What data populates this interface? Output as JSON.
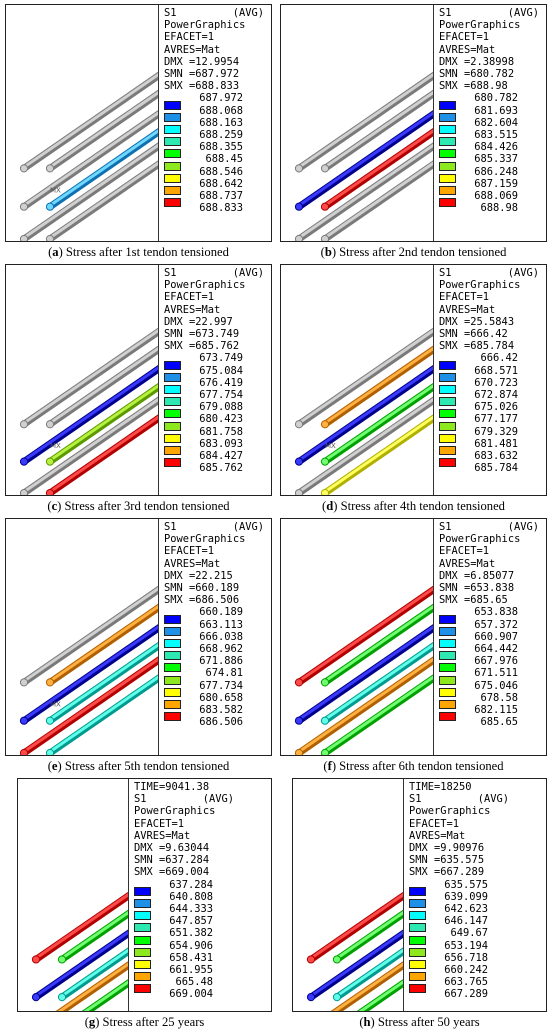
{
  "captions": {
    "a": {
      "letter": "a",
      "text": " Stress after 1st tendon tensioned"
    },
    "b": {
      "letter": "b",
      "text": " Stress after 2nd tendon tensioned"
    },
    "c": {
      "letter": "c",
      "text": " Stress after 3rd tendon tensioned"
    },
    "d": {
      "letter": "d",
      "text": " Stress after 4th tendon tensioned"
    },
    "e": {
      "letter": "e",
      "text": " Stress after 5th tendon tensioned"
    },
    "f": {
      "letter": "f",
      "text": " Stress after 6th tendon tensioned"
    },
    "g": {
      "letter": "g",
      "text": " Stress after 25 years"
    },
    "h": {
      "letter": "h",
      "text": " Stress after 50 years"
    }
  },
  "legend_colors": [
    "#0000ff",
    "#1e90e8",
    "#00ffff",
    "#2de8b0",
    "#00ff00",
    "#8ee81e",
    "#ffff00",
    "#ffa500",
    "#ff0000"
  ],
  "panels": [
    {
      "id": "a",
      "time": "",
      "s1": "S1",
      "avg": "(AVG)",
      "pg": "PowerGraphics",
      "efacet": "EFACET=1",
      "avres": "AVRES=Mat",
      "dmx": "DMX =12.9954",
      "smn": "SMN =687.972",
      "smx": "SMX =688.833",
      "levels": [
        "687.972",
        "688.068",
        "688.163",
        "688.259",
        "688.355",
        "688.45",
        "688.546",
        "688.642",
        "688.737",
        "688.833"
      ],
      "mx": "MX",
      "rods": [
        "gray",
        "gray",
        "cyan-blue",
        "gray",
        "gray",
        "gray"
      ]
    },
    {
      "id": "b",
      "time": "",
      "s1": "S1",
      "avg": "(AVG)",
      "pg": "PowerGraphics",
      "efacet": "EFACET=1",
      "avres": "AVRES=Mat",
      "dmx": "DMX =2.38998",
      "smn": "SMN =680.782",
      "smx": "SMX =688.98",
      "levels": [
        "680.782",
        "681.693",
        "682.604",
        "683.515",
        "684.426",
        "685.337",
        "686.248",
        "687.159",
        "688.069",
        "688.98"
      ],
      "mx": "",
      "rods": [
        "gray",
        "gray",
        "red",
        "blue",
        "gray",
        "gray"
      ]
    },
    {
      "id": "c",
      "time": "",
      "s1": "S1",
      "avg": "(AVG)",
      "pg": "PowerGraphics",
      "efacet": "EFACET=1",
      "avres": "AVRES=Mat",
      "dmx": "DMX =22.997",
      "smn": "SMN =673.749",
      "smx": "SMX =685.762",
      "levels": [
        "673.749",
        "675.084",
        "676.419",
        "677.754",
        "679.088",
        "680.423",
        "681.758",
        "683.093",
        "684.427",
        "685.762"
      ],
      "mx": "MX",
      "rods": [
        "gray",
        "gray",
        "yellowgreen",
        "blue",
        "gray",
        "red"
      ]
    },
    {
      "id": "d",
      "time": "",
      "s1": "S1",
      "avg": "(AVG)",
      "pg": "PowerGraphics",
      "efacet": "EFACET=1",
      "avres": "AVRES=Mat",
      "dmx": "DMX =25.5843",
      "smn": "SMN =666.42",
      "smx": "SMX =685.784",
      "levels": [
        "666.42",
        "668.571",
        "670.723",
        "672.874",
        "675.026",
        "677.177",
        "679.329",
        "681.481",
        "683.632",
        "685.784"
      ],
      "mx": "MX",
      "rods": [
        "gray",
        "orange",
        "green",
        "blue",
        "gray",
        "yellow"
      ]
    },
    {
      "id": "e",
      "time": "",
      "s1": "S1",
      "avg": "(AVG)",
      "pg": "PowerGraphics",
      "efacet": "EFACET=1",
      "avres": "AVRES=Mat",
      "dmx": "DMX =22.215",
      "smn": "SMN =660.189",
      "smx": "SMX =686.506",
      "levels": [
        "660.189",
        "663.113",
        "666.038",
        "668.962",
        "671.886",
        "674.81",
        "677.734",
        "680.658",
        "683.582",
        "686.506"
      ],
      "mx": "MX",
      "rods": [
        "gray",
        "orange",
        "teal",
        "blue",
        "red",
        "teal"
      ]
    },
    {
      "id": "f",
      "time": "",
      "s1": "S1",
      "avg": "(AVG)",
      "pg": "PowerGraphics",
      "efacet": "EFACET=1",
      "avres": "AVRES=Mat",
      "dmx": "DMX =6.85077",
      "smn": "SMN =653.838",
      "smx": "SMX =685.65",
      "levels": [
        "653.838",
        "657.372",
        "660.907",
        "664.442",
        "667.976",
        "671.511",
        "675.046",
        "678.58",
        "682.115",
        "685.65"
      ],
      "mx": "",
      "rods": [
        "red",
        "green",
        "teal",
        "blue",
        "orange",
        "green"
      ]
    },
    {
      "id": "g",
      "time": "TIME=9041.38",
      "s1": "S1",
      "avg": "(AVG)",
      "pg": "PowerGraphics",
      "efacet": "EFACET=1",
      "avres": "AVRES=Mat",
      "dmx": "DMX =9.63044",
      "smn": "SMN =637.284",
      "smx": "SMX =669.004",
      "levels": [
        "637.284",
        "640.808",
        "644.333",
        "647.857",
        "651.382",
        "654.906",
        "658.431",
        "661.955",
        "665.48",
        "669.004"
      ],
      "mx": "",
      "rods": [
        "red",
        "green",
        "teal",
        "blue",
        "orange",
        "green"
      ]
    },
    {
      "id": "h",
      "time": "TIME=18250",
      "s1": "S1",
      "avg": "(AVG)",
      "pg": "PowerGraphics",
      "efacet": "EFACET=1",
      "avres": "AVRES=Mat",
      "dmx": "DMX =9.90976",
      "smn": "SMN =635.575",
      "smx": "SMX =667.289",
      "levels": [
        "635.575",
        "639.099",
        "642.623",
        "646.147",
        "649.67",
        "653.194",
        "656.718",
        "660.242",
        "663.765",
        "667.289"
      ],
      "mx": "",
      "rods": [
        "red",
        "green",
        "teal",
        "blue",
        "orange",
        "green"
      ]
    }
  ]
}
